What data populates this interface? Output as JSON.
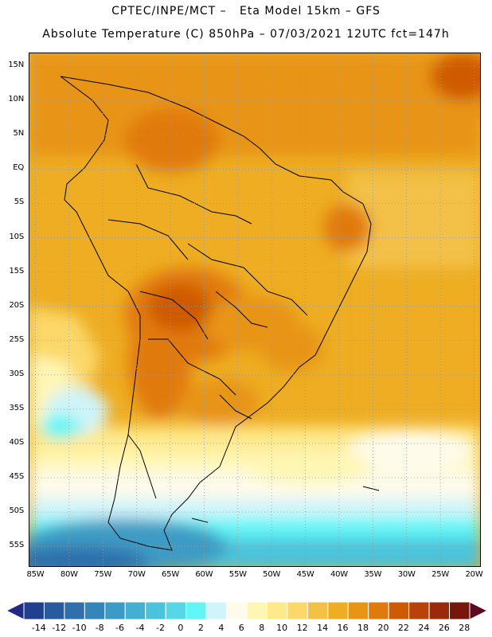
{
  "title_line1": "CPTEC/INPE/MCT –   Eta Model 15km – GFS",
  "title_line2": "Absolute Temperature (C) 850hPa – 07/03/2021 12UTC fct=147h",
  "map": {
    "lon_range": [
      -86,
      -19
    ],
    "lat_range": [
      17,
      -58
    ],
    "lat_ticks": [
      "15N",
      "10N",
      "5N",
      "EQ",
      "5S",
      "10S",
      "15S",
      "20S",
      "25S",
      "30S",
      "35S",
      "40S",
      "45S",
      "50S",
      "55S"
    ],
    "lat_values": [
      15,
      10,
      5,
      0,
      -5,
      -10,
      -15,
      -20,
      -25,
      -30,
      -35,
      -40,
      -45,
      -50,
      -55
    ],
    "lon_ticks": [
      "85W",
      "80W",
      "75W",
      "70W",
      "65W",
      "60W",
      "55W",
      "50W",
      "45W",
      "40W",
      "35W",
      "30W",
      "25W",
      "20W"
    ],
    "lon_values": [
      -85,
      -80,
      -75,
      -70,
      -65,
      -60,
      -55,
      -50,
      -45,
      -40,
      -35,
      -30,
      -25,
      -20
    ],
    "grid": true,
    "grid_style": "dotted"
  },
  "colorbar": {
    "labels": [
      "-14",
      "-12",
      "-10",
      "-8",
      "-6",
      "-4",
      "-2",
      "0",
      "2",
      "4",
      "6",
      "8",
      "10",
      "12",
      "14",
      "16",
      "18",
      "20",
      "22",
      "24",
      "26",
      "28"
    ],
    "colors": [
      "#1f3f8f",
      "#2a5a9e",
      "#2f6fac",
      "#3685b8",
      "#3c9bc4",
      "#44afd0",
      "#4cc3dc",
      "#56d6e6",
      "#62f5f5",
      "#cff4fa",
      "#fffbea",
      "#fff6b4",
      "#ffe98a",
      "#fbd869",
      "#f3c146",
      "#eead22",
      "#e89414",
      "#e17a0d",
      "#cf5a06",
      "#b8420b",
      "#992a0a",
      "#75170b"
    ],
    "under_color": "#222a88",
    "over_color": "#5e0824"
  }
}
